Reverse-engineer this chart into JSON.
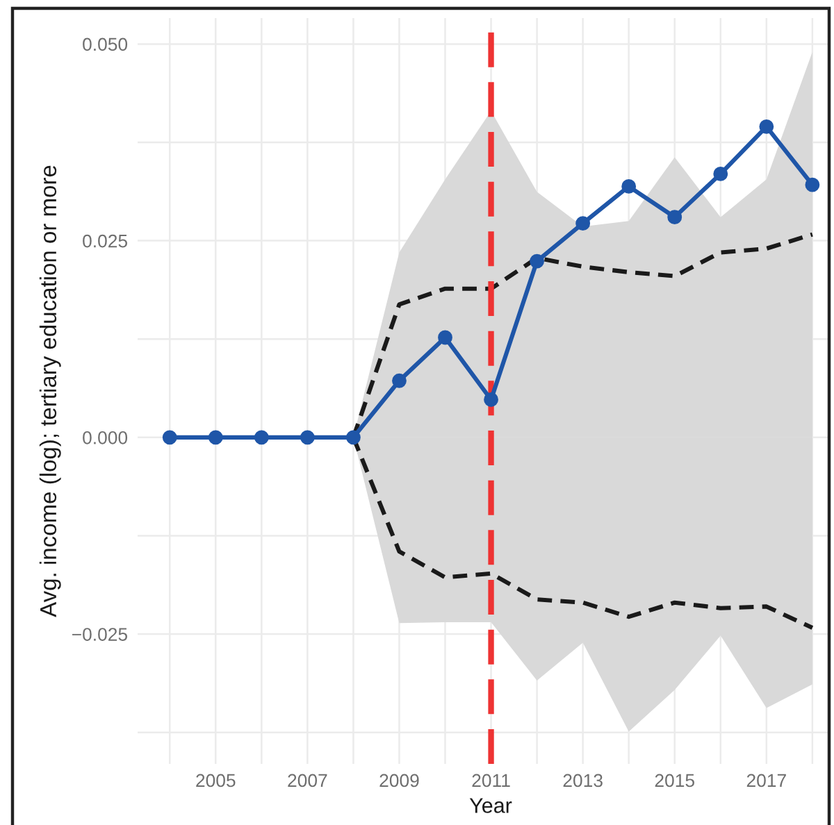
{
  "chart_data": {
    "type": "line",
    "xlabel": "Year",
    "ylabel": "Avg. income (log); tertiary education or more",
    "x": [
      2004,
      2005,
      2006,
      2007,
      2008,
      2009,
      2010,
      2011,
      2012,
      2013,
      2014,
      2015,
      2016,
      2017,
      2018
    ],
    "series": [
      {
        "type": "area",
        "color": "#d9d9d9",
        "values": [
          null,
          null,
          null,
          null,
          0,
          0.0235,
          0.0328,
          0.0415,
          0.0312,
          0.0268,
          0.0275,
          0.0356,
          0.028,
          0.0328,
          0.049
        ]
      },
      {
        "type": "area",
        "color": "#d9d9d9",
        "values": [
          null,
          null,
          null,
          null,
          0,
          -0.0236,
          -0.0235,
          -0.0235,
          -0.0309,
          -0.0261,
          -0.0374,
          -0.0321,
          -0.0252,
          -0.0344,
          -0.0314
        ]
      },
      {
        "color": "#1a1a1a",
        "line_style": "dashed",
        "marker": "none",
        "values": [
          null,
          null,
          null,
          null,
          0,
          0.0169,
          0.0189,
          0.0189,
          0.0228,
          0.0217,
          0.021,
          0.0205,
          0.0235,
          0.024,
          0.0258
        ]
      },
      {
        "color": "#1a1a1a",
        "line_style": "dashed",
        "marker": "none",
        "values": [
          null,
          null,
          null,
          null,
          0,
          -0.0145,
          -0.0178,
          -0.0173,
          -0.0206,
          -0.021,
          -0.0228,
          -0.021,
          -0.0217,
          -0.0215,
          -0.0242
        ]
      },
      {
        "color": "#1f56a8",
        "line_style": "solid",
        "marker": "circle",
        "values": [
          0,
          0,
          0,
          0,
          0,
          0.0072,
          0.0127,
          0.0048,
          0.0224,
          0.0272,
          0.0319,
          0.028,
          0.0335,
          0.0395,
          0.0321
        ]
      }
    ],
    "xlim": [
      2003.3,
      2018.35
    ],
    "xticks": [
      {
        "value": 2004,
        "label": null
      },
      2005,
      {
        "value": 2006,
        "label": null
      },
      2007,
      {
        "value": 2008,
        "label": null
      },
      2009,
      {
        "value": 2010,
        "label": null
      },
      2011,
      {
        "value": 2012,
        "label": null
      },
      2013,
      {
        "value": 2014,
        "label": null
      },
      2015,
      {
        "value": 2016,
        "label": null
      },
      2017,
      {
        "value": 2018,
        "label": null
      }
    ],
    "ylim": [
      -0.0415,
      0.0533
    ],
    "yticks": [
      {
        "value": -0.0375,
        "label": null
      },
      {
        "value": -0.025,
        "label": "−0.025"
      },
      {
        "value": -0.0125,
        "label": null
      },
      {
        "value": 0,
        "label": "0.000"
      },
      {
        "value": 0.0125,
        "label": null
      },
      {
        "value": 0.025,
        "label": "0.025"
      },
      {
        "value": 0.0375,
        "label": null
      },
      {
        "value": 0.05,
        "label": "0.050"
      }
    ],
    "grid": true,
    "ref_lines": [
      {
        "axis": "x",
        "value": 2011,
        "color": "#ee3333",
        "line_style": "dashed"
      }
    ]
  }
}
